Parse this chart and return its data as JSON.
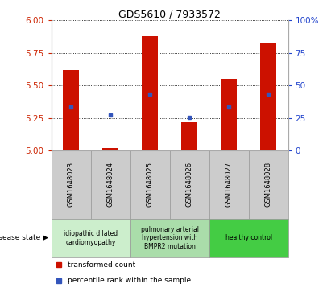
{
  "title": "GDS5610 / 7933572",
  "samples": [
    "GSM1648023",
    "GSM1648024",
    "GSM1648025",
    "GSM1648026",
    "GSM1648027",
    "GSM1648028"
  ],
  "transformed_count": [
    5.62,
    5.02,
    5.88,
    5.22,
    5.55,
    5.83
  ],
  "percentile_rank": [
    5.335,
    5.275,
    5.435,
    5.255,
    5.335,
    5.435
  ],
  "ylim_left": [
    5.0,
    6.0
  ],
  "ylim_right": [
    0,
    100
  ],
  "yticks_left": [
    5.0,
    5.25,
    5.5,
    5.75,
    6.0
  ],
  "yticks_right": [
    0,
    25,
    50,
    75,
    100
  ],
  "bar_color": "#cc1100",
  "dot_color": "#3355bb",
  "disease_groups": [
    {
      "label": "idiopathic dilated\ncardiomyopathy",
      "indices": [
        0,
        1
      ],
      "color": "#cceecc"
    },
    {
      "label": "pulmonary arterial\nhypertension with\nBMPR2 mutation",
      "indices": [
        2,
        3
      ],
      "color": "#aaddaa"
    },
    {
      "label": "healthy control",
      "indices": [
        4,
        5
      ],
      "color": "#44cc44"
    }
  ],
  "disease_state_label": "disease state",
  "legend_items": [
    {
      "label": "transformed count",
      "color": "#cc1100"
    },
    {
      "label": "percentile rank within the sample",
      "color": "#3355bb"
    }
  ],
  "tick_color_left": "#cc2200",
  "tick_color_right": "#2244cc",
  "bar_width": 0.4
}
